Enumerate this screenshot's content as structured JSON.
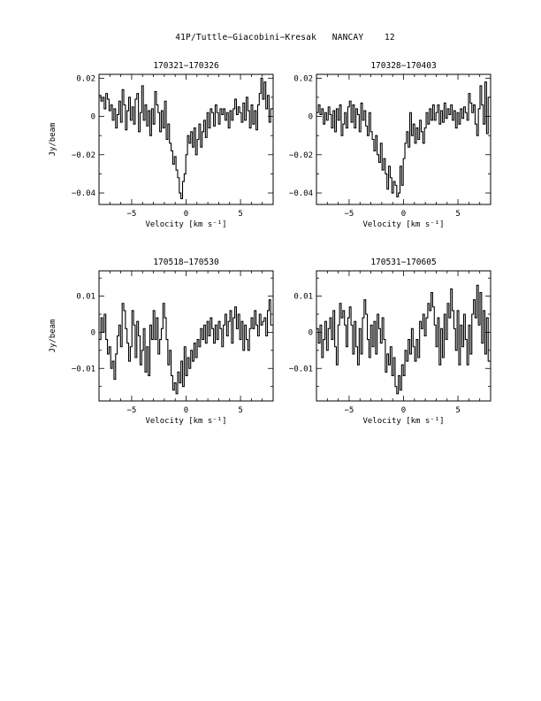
{
  "page": {
    "title": "41P/Tuttle−Giacobini−Kresak   NANCAY    12"
  },
  "chart_data": [
    {
      "type": "line",
      "style": "step",
      "title": "170321−170326",
      "xlabel": "Velocity [km s⁻¹]",
      "ylabel": "Jy/beam",
      "xlim": [
        -8,
        8
      ],
      "ylim": [
        -0.046,
        0.022
      ],
      "xticks": [
        -5,
        0,
        5
      ],
      "xtick_labels": [
        "−5",
        "0",
        "5"
      ],
      "yticks": [
        -0.04,
        -0.02,
        0,
        0.02
      ],
      "ytick_labels": [
        "−0.04",
        "−0.02",
        "0",
        "0.02"
      ],
      "x": [
        -7.9,
        -7.75,
        -7.6,
        -7.45,
        -7.3,
        -7.15,
        -7.0,
        -6.85,
        -6.7,
        -6.55,
        -6.4,
        -6.25,
        -6.1,
        -5.95,
        -5.8,
        -5.65,
        -5.5,
        -5.35,
        -5.2,
        -5.05,
        -4.9,
        -4.75,
        -4.6,
        -4.45,
        -4.3,
        -4.15,
        -4.0,
        -3.85,
        -3.7,
        -3.55,
        -3.4,
        -3.25,
        -3.1,
        -2.95,
        -2.8,
        -2.65,
        -2.5,
        -2.35,
        -2.2,
        -2.05,
        -1.9,
        -1.75,
        -1.6,
        -1.45,
        -1.3,
        -1.15,
        -1.0,
        -0.85,
        -0.7,
        -0.55,
        -0.4,
        -0.25,
        -0.1,
        0.05,
        0.2,
        0.35,
        0.5,
        0.65,
        0.8,
        0.95,
        1.1,
        1.25,
        1.4,
        1.55,
        1.7,
        1.85,
        2.0,
        2.15,
        2.3,
        2.45,
        2.6,
        2.75,
        2.9,
        3.05,
        3.2,
        3.35,
        3.5,
        3.65,
        3.8,
        3.95,
        4.1,
        4.25,
        4.4,
        4.55,
        4.7,
        4.85,
        5.0,
        5.15,
        5.3,
        5.45,
        5.6,
        5.75,
        5.9,
        6.05,
        6.2,
        6.35,
        6.5,
        6.65,
        6.8,
        6.95,
        7.1,
        7.25,
        7.4,
        7.55,
        7.7,
        7.85
      ],
      "y": [
        0.011,
        0.008,
        0.01,
        0.004,
        0.012,
        0.009,
        0.003,
        0.006,
        -0.002,
        0.004,
        -0.006,
        0.001,
        0.008,
        -0.003,
        0.014,
        0.006,
        -0.007,
        0.003,
        0.01,
        -0.002,
        0.005,
        -0.004,
        0.009,
        0.012,
        -0.008,
        0.002,
        0.016,
        -0.002,
        0.006,
        -0.005,
        0.003,
        -0.01,
        0.004,
        -0.004,
        0.013,
        0.006,
        0.002,
        -0.008,
        0.003,
        -0.006,
        0.008,
        -0.012,
        -0.004,
        -0.014,
        -0.018,
        -0.025,
        -0.021,
        -0.028,
        -0.032,
        -0.04,
        -0.043,
        -0.034,
        -0.03,
        -0.02,
        -0.01,
        -0.014,
        -0.008,
        -0.016,
        -0.006,
        -0.02,
        -0.012,
        -0.004,
        -0.016,
        -0.008,
        -0.002,
        -0.011,
        0.002,
        -0.006,
        0.004,
        0.002,
        -0.005,
        0.006,
        0.002,
        -0.004,
        0.004,
        0.001,
        0.004,
        -0.002,
        0.002,
        -0.006,
        0.003,
        -0.002,
        0.004,
        0.009,
        0.001,
        0.005,
        0.002,
        -0.003,
        0.007,
        -0.002,
        0.01,
        0.003,
        -0.006,
        0.006,
        -0.004,
        0.003,
        -0.007,
        0.006,
        0.012,
        0.02,
        0.009,
        0.018,
        0.004,
        0.011,
        -0.003,
        0.004
      ]
    },
    {
      "type": "line",
      "style": "step",
      "title": "170328−170403",
      "xlabel": "Velocity [km s⁻¹]",
      "ylabel": "",
      "xlim": [
        -8,
        8
      ],
      "ylim": [
        -0.046,
        0.022
      ],
      "xticks": [
        -5,
        0,
        5
      ],
      "xtick_labels": [
        "−5",
        "0",
        "5"
      ],
      "yticks": [
        -0.04,
        -0.02,
        0,
        0.02
      ],
      "ytick_labels": [
        "−0.04",
        "−0.02",
        "0",
        "0.02"
      ],
      "x": [
        -7.9,
        -7.75,
        -7.6,
        -7.45,
        -7.3,
        -7.15,
        -7.0,
        -6.85,
        -6.7,
        -6.55,
        -6.4,
        -6.25,
        -6.1,
        -5.95,
        -5.8,
        -5.65,
        -5.5,
        -5.35,
        -5.2,
        -5.05,
        -4.9,
        -4.75,
        -4.6,
        -4.45,
        -4.3,
        -4.15,
        -4.0,
        -3.85,
        -3.7,
        -3.55,
        -3.4,
        -3.25,
        -3.1,
        -2.95,
        -2.8,
        -2.65,
        -2.5,
        -2.35,
        -2.2,
        -2.05,
        -1.9,
        -1.75,
        -1.6,
        -1.45,
        -1.3,
        -1.15,
        -1.0,
        -0.85,
        -0.7,
        -0.55,
        -0.4,
        -0.25,
        -0.1,
        0.05,
        0.2,
        0.35,
        0.5,
        0.65,
        0.8,
        0.95,
        1.1,
        1.25,
        1.4,
        1.55,
        1.7,
        1.85,
        2.0,
        2.15,
        2.3,
        2.45,
        2.6,
        2.75,
        2.9,
        3.05,
        3.2,
        3.35,
        3.5,
        3.65,
        3.8,
        3.95,
        4.1,
        4.25,
        4.4,
        4.55,
        4.7,
        4.85,
        5.0,
        5.15,
        5.3,
        5.45,
        5.6,
        5.75,
        5.9,
        6.05,
        6.2,
        6.35,
        6.5,
        6.65,
        6.8,
        6.95,
        7.1,
        7.25,
        7.4,
        7.55,
        7.7,
        7.85
      ],
      "y": [
        0.002,
        0.006,
        0.001,
        0.004,
        -0.004,
        0.002,
        -0.002,
        0.005,
        0.001,
        -0.006,
        0.003,
        -0.008,
        0.004,
        -0.002,
        0.006,
        -0.01,
        -0.004,
        0.002,
        -0.006,
        0.005,
        0.008,
        -0.003,
        0.006,
        -0.006,
        0.004,
        0.001,
        -0.008,
        0.007,
        -0.002,
        0.003,
        -0.005,
        -0.01,
        0.002,
        -0.008,
        -0.012,
        -0.018,
        -0.01,
        -0.02,
        -0.024,
        -0.014,
        -0.028,
        -0.022,
        -0.03,
        -0.038,
        -0.026,
        -0.032,
        -0.04,
        -0.034,
        -0.036,
        -0.042,
        -0.04,
        -0.026,
        -0.036,
        -0.022,
        -0.014,
        -0.008,
        -0.016,
        0.002,
        -0.01,
        -0.004,
        -0.014,
        -0.006,
        -0.012,
        -0.002,
        -0.008,
        -0.014,
        -0.006,
        0.002,
        -0.004,
        0.004,
        -0.002,
        0.006,
        -0.002,
        0.002,
        0.006,
        -0.004,
        0.003,
        -0.003,
        0.007,
        -0.001,
        0.004,
        0.001,
        0.006,
        -0.002,
        0.003,
        -0.006,
        0.002,
        -0.004,
        0.004,
        -0.001,
        0.005,
        0.002,
        -0.002,
        0.012,
        0.007,
        0.002,
        0.006,
        -0.004,
        -0.01,
        0.004,
        0.016,
        0.006,
        -0.004,
        0.018,
        -0.009,
        0.01
      ]
    },
    {
      "type": "line",
      "style": "step",
      "title": "170518−170530",
      "xlabel": "Velocity [km s⁻¹]",
      "ylabel": "Jy/beam",
      "xlim": [
        -8,
        8
      ],
      "ylim": [
        -0.019,
        0.017
      ],
      "xticks": [
        -5,
        0,
        5
      ],
      "xtick_labels": [
        "−5",
        "0",
        "5"
      ],
      "yticks": [
        -0.01,
        0,
        0.01
      ],
      "ytick_labels": [
        "−0.01",
        "0",
        "0.01"
      ],
      "x": [
        -7.9,
        -7.75,
        -7.6,
        -7.45,
        -7.3,
        -7.15,
        -7.0,
        -6.85,
        -6.7,
        -6.55,
        -6.4,
        -6.25,
        -6.1,
        -5.95,
        -5.8,
        -5.65,
        -5.5,
        -5.35,
        -5.2,
        -5.05,
        -4.9,
        -4.75,
        -4.6,
        -4.45,
        -4.3,
        -4.15,
        -4.0,
        -3.85,
        -3.7,
        -3.55,
        -3.4,
        -3.25,
        -3.1,
        -2.95,
        -2.8,
        -2.65,
        -2.5,
        -2.35,
        -2.2,
        -2.05,
        -1.9,
        -1.75,
        -1.6,
        -1.45,
        -1.3,
        -1.15,
        -1.0,
        -0.85,
        -0.7,
        -0.55,
        -0.4,
        -0.25,
        -0.1,
        0.05,
        0.2,
        0.35,
        0.5,
        0.65,
        0.8,
        0.95,
        1.1,
        1.25,
        1.4,
        1.55,
        1.7,
        1.85,
        2.0,
        2.15,
        2.3,
        2.45,
        2.6,
        2.75,
        2.9,
        3.05,
        3.2,
        3.35,
        3.5,
        3.65,
        3.8,
        3.95,
        4.1,
        4.25,
        4.4,
        4.55,
        4.7,
        4.85,
        5.0,
        5.15,
        5.3,
        5.45,
        5.6,
        5.75,
        5.9,
        6.05,
        6.2,
        6.35,
        6.5,
        6.65,
        6.8,
        6.95,
        7.1,
        7.25,
        7.4,
        7.55,
        7.7,
        7.85
      ],
      "y": [
        -0.002,
        0.004,
        0.0,
        0.005,
        -0.002,
        -0.006,
        -0.004,
        -0.01,
        -0.008,
        -0.013,
        -0.006,
        -0.001,
        0.002,
        -0.004,
        0.008,
        0.006,
        0.001,
        -0.003,
        -0.008,
        -0.004,
        0.006,
        0.002,
        -0.007,
        0.003,
        -0.001,
        -0.009,
        -0.005,
        0.001,
        -0.011,
        -0.004,
        -0.012,
        0.002,
        -0.002,
        0.006,
        -0.002,
        0.004,
        -0.006,
        -0.002,
        0.001,
        0.008,
        0.004,
        -0.002,
        -0.009,
        -0.005,
        -0.012,
        -0.016,
        -0.014,
        -0.017,
        -0.011,
        -0.014,
        -0.008,
        -0.015,
        -0.004,
        -0.012,
        -0.007,
        -0.01,
        -0.005,
        -0.008,
        -0.003,
        -0.007,
        -0.002,
        -0.004,
        0.001,
        -0.002,
        0.002,
        -0.003,
        0.003,
        -0.001,
        0.004,
        0.001,
        -0.003,
        0.002,
        -0.002,
        0.003,
        0.001,
        -0.004,
        0.002,
        0.005,
        -0.001,
        0.003,
        0.006,
        -0.003,
        0.004,
        0.007,
        0.001,
        0.005,
        -0.002,
        0.003,
        -0.005,
        0.002,
        -0.002,
        -0.005,
        0.001,
        0.004,
        0.001,
        0.006,
        0.002,
        -0.001,
        0.005,
        0.002,
        0.003,
        0.004,
        -0.001,
        0.006,
        0.009,
        0.002
      ]
    },
    {
      "type": "line",
      "style": "step",
      "title": "170531−170605",
      "xlabel": "Velocity [km s⁻¹]",
      "ylabel": "",
      "xlim": [
        -8,
        8
      ],
      "ylim": [
        -0.019,
        0.017
      ],
      "xticks": [
        -5,
        0,
        5
      ],
      "xtick_labels": [
        "−5",
        "0",
        "5"
      ],
      "yticks": [
        -0.01,
        0,
        0.01
      ],
      "ytick_labels": [
        "−0.01",
        "0",
        "0.01"
      ],
      "x": [
        -7.9,
        -7.75,
        -7.6,
        -7.45,
        -7.3,
        -7.15,
        -7.0,
        -6.85,
        -6.7,
        -6.55,
        -6.4,
        -6.25,
        -6.1,
        -5.95,
        -5.8,
        -5.65,
        -5.5,
        -5.35,
        -5.2,
        -5.05,
        -4.9,
        -4.75,
        -4.6,
        -4.45,
        -4.3,
        -4.15,
        -4.0,
        -3.85,
        -3.7,
        -3.55,
        -3.4,
        -3.25,
        -3.1,
        -2.95,
        -2.8,
        -2.65,
        -2.5,
        -2.35,
        -2.2,
        -2.05,
        -1.9,
        -1.75,
        -1.6,
        -1.45,
        -1.3,
        -1.15,
        -1.0,
        -0.85,
        -0.7,
        -0.55,
        -0.4,
        -0.25,
        -0.1,
        0.05,
        0.2,
        0.35,
        0.5,
        0.65,
        0.8,
        0.95,
        1.1,
        1.25,
        1.4,
        1.55,
        1.7,
        1.85,
        2.0,
        2.15,
        2.3,
        2.45,
        2.6,
        2.75,
        2.9,
        3.05,
        3.2,
        3.35,
        3.5,
        3.65,
        3.8,
        3.95,
        4.1,
        4.25,
        4.4,
        4.55,
        4.7,
        4.85,
        5.0,
        5.15,
        5.3,
        5.45,
        5.6,
        5.75,
        5.9,
        6.05,
        6.2,
        6.35,
        6.5,
        6.65,
        6.8,
        6.95,
        7.1,
        7.25,
        7.4,
        7.55,
        7.7,
        7.85
      ],
      "y": [
        0.001,
        -0.003,
        0.002,
        -0.007,
        -0.002,
        0.003,
        -0.005,
        0.001,
        0.004,
        -0.002,
        0.006,
        -0.004,
        -0.009,
        0.002,
        0.008,
        0.004,
        0.006,
        0.002,
        -0.004,
        0.004,
        0.007,
        0.002,
        -0.006,
        0.003,
        -0.004,
        -0.009,
        0.001,
        -0.006,
        0.004,
        0.009,
        0.005,
        -0.002,
        -0.007,
        0.002,
        -0.004,
        0.003,
        -0.006,
        0.005,
        0.001,
        -0.003,
        0.004,
        -0.002,
        -0.011,
        -0.006,
        -0.009,
        -0.004,
        -0.012,
        -0.007,
        -0.015,
        -0.017,
        -0.012,
        -0.016,
        -0.009,
        -0.012,
        -0.005,
        -0.008,
        -0.002,
        -0.006,
        0.001,
        -0.004,
        -0.008,
        -0.002,
        -0.007,
        0.003,
        0.001,
        0.005,
        -0.001,
        0.004,
        0.008,
        0.006,
        0.011,
        0.007,
        0.002,
        -0.004,
        0.004,
        -0.009,
        0.001,
        -0.007,
        0.005,
        -0.002,
        0.008,
        0.004,
        0.012,
        0.006,
        0.001,
        -0.005,
        0.006,
        -0.009,
        0.002,
        -0.004,
        0.005,
        -0.002,
        -0.009,
        0.002,
        -0.006,
        0.005,
        0.009,
        0.004,
        0.013,
        0.002,
        0.011,
        -0.003,
        0.006,
        -0.006,
        0.004,
        -0.008
      ]
    }
  ]
}
